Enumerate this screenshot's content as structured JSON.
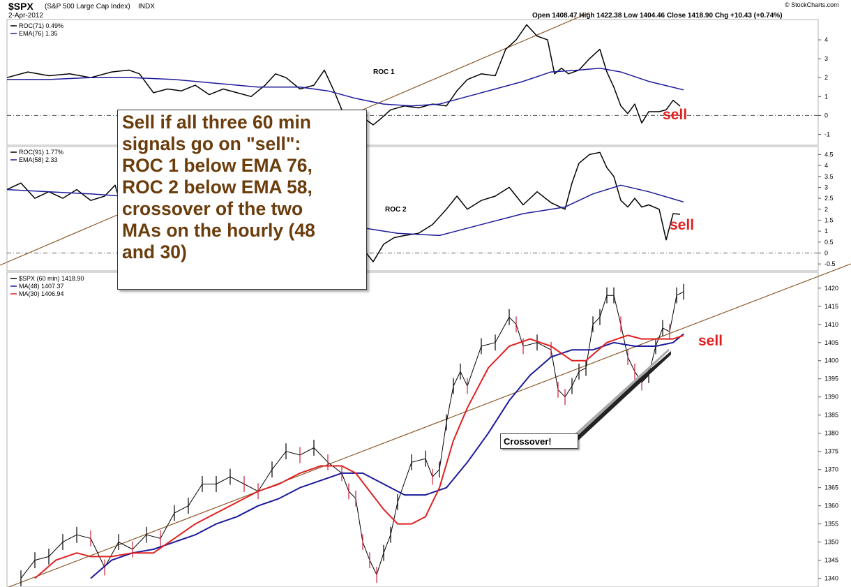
{
  "header": {
    "symbol": "$SPX",
    "name": "(S&P 500 Large Cap Index)",
    "exchange": "INDX",
    "date": "2-Apr-2012",
    "ohlc": "Open 1408.47  High 1422.38  Low 1404.46  Close 1418.90  Chg +10.43 (+0.74%)",
    "brand": "© StockCharts.com"
  },
  "annotation": {
    "text": "Sell if all three 60 min\nsignals go on \"sell\":\nROC 1 below EMA 76,\nROC 2 below EMA 58,\ncrossover of the two\nMAs on the hourly (48\nand 30)",
    "sell": "sell",
    "crossover": "Crossover!"
  },
  "colors": {
    "black": "#000000",
    "blue": "#1a1a9a",
    "red": "#e02020",
    "brown": "#8b5a2b",
    "annot": "#6b3d0c"
  },
  "chart_data": [
    {
      "type": "line",
      "panel": "ROC 1",
      "label": "ROC 1",
      "legend": [
        "ROC(71) 0.49%",
        "EMA(76) 1.35"
      ],
      "ylim": [
        -1.5,
        5
      ],
      "yticks": [
        4,
        3,
        2,
        1,
        0,
        -1
      ],
      "series": [
        {
          "name": "ROC(71)",
          "color": "#000000",
          "x": [
            0,
            30,
            60,
            90,
            120,
            150,
            175,
            190,
            210,
            230,
            250,
            270,
            290,
            310,
            330,
            350,
            370,
            385,
            400,
            420,
            440,
            455,
            470,
            480,
            490,
            500,
            510,
            525,
            535,
            550,
            570,
            590,
            610,
            630,
            645,
            660,
            680,
            700,
            715,
            730,
            745,
            760,
            775,
            785,
            795,
            805,
            820,
            835,
            850,
            860,
            870,
            880,
            890,
            900,
            910,
            920,
            935,
            945,
            955,
            965
          ],
          "values": [
            2.0,
            2.3,
            2.1,
            2.2,
            2.0,
            2.3,
            2.4,
            2.2,
            1.2,
            1.4,
            1.3,
            1.6,
            1.1,
            1.4,
            1.2,
            1.0,
            1.6,
            2.2,
            2.0,
            1.4,
            1.6,
            2.4,
            1.2,
            0.3,
            0.0,
            0.0,
            -0.1,
            -0.5,
            -0.2,
            0.3,
            0.5,
            0.4,
            0.6,
            0.5,
            1.3,
            1.9,
            2.2,
            2.1,
            3.5,
            4.0,
            4.8,
            4.2,
            4.0,
            2.2,
            2.5,
            2.2,
            2.4,
            3.0,
            3.5,
            2.3,
            1.5,
            0.5,
            0.1,
            0.6,
            -0.4,
            0.2,
            0.2,
            0.3,
            0.8,
            0.49
          ]
        },
        {
          "name": "EMA(76)",
          "color": "#1a1a9a",
          "x": [
            0,
            60,
            120,
            180,
            240,
            300,
            360,
            420,
            460,
            500,
            540,
            580,
            620,
            660,
            700,
            740,
            780,
            820,
            850,
            880,
            920,
            970
          ],
          "values": [
            1.9,
            1.9,
            2.0,
            2.0,
            1.9,
            1.7,
            1.5,
            1.5,
            1.3,
            0.9,
            0.6,
            0.5,
            0.6,
            1.0,
            1.4,
            1.8,
            2.3,
            2.4,
            2.5,
            2.3,
            1.8,
            1.35
          ]
        }
      ]
    },
    {
      "type": "line",
      "panel": "ROC 2",
      "label": "ROC 2",
      "legend": [
        "ROC(91) 1.77%",
        "EMA(58) 2.33"
      ],
      "ylim": [
        -0.75,
        4.8
      ],
      "yticks": [
        4.5,
        4.0,
        3.5,
        3.0,
        2.5,
        2.0,
        1.5,
        1.0,
        0.5,
        0.0,
        -0.5
      ],
      "series": [
        {
          "name": "ROC(91)",
          "color": "#000000",
          "x": [
            0,
            20,
            40,
            60,
            80,
            100,
            120,
            140,
            155,
            165,
            500,
            515,
            525,
            540,
            555,
            570,
            590,
            610,
            630,
            645,
            660,
            680,
            700,
            720,
            740,
            760,
            780,
            800,
            810,
            820,
            835,
            850,
            860,
            870,
            880,
            890,
            900,
            910,
            920,
            935,
            945,
            955,
            965
          ],
          "values": [
            2.9,
            3.2,
            2.5,
            2.8,
            2.5,
            2.9,
            2.4,
            2.6,
            3.1,
            2.0,
            0.6,
            0.0,
            -0.4,
            0.4,
            0.7,
            0.8,
            0.9,
            1.3,
            2.0,
            2.6,
            2.0,
            2.4,
            2.6,
            3.0,
            2.2,
            2.8,
            2.3,
            2.0,
            3.2,
            4.1,
            4.5,
            4.6,
            3.9,
            3.5,
            2.4,
            2.1,
            2.5,
            2.1,
            2.2,
            2.0,
            0.6,
            1.8,
            1.77
          ]
        },
        {
          "name": "EMA(58)",
          "color": "#1a1a9a",
          "x": [
            0,
            60,
            120,
            165,
            500,
            560,
            620,
            680,
            740,
            800,
            840,
            880,
            920,
            970
          ],
          "values": [
            2.9,
            2.8,
            2.7,
            2.6,
            1.2,
            0.9,
            0.8,
            1.3,
            1.8,
            2.1,
            2.7,
            3.1,
            2.8,
            2.33
          ]
        }
      ]
    },
    {
      "type": "line",
      "panel": "$SPX (60 min)",
      "legend": [
        "$SPX (60 min) 1418.90",
        "MA(48) 1407.37",
        "MA(30) 1406.94"
      ],
      "ylim": [
        1338,
        1424
      ],
      "yticks": [
        1420,
        1415,
        1410,
        1405,
        1400,
        1395,
        1390,
        1385,
        1380,
        1375,
        1370,
        1365,
        1360,
        1355,
        1350,
        1345,
        1340
      ],
      "series": [
        {
          "name": "$SPX (60 min)",
          "color": "#000000",
          "x": [
            20,
            40,
            60,
            80,
            100,
            120,
            140,
            160,
            180,
            200,
            220,
            240,
            260,
            280,
            300,
            320,
            340,
            360,
            380,
            400,
            420,
            440,
            460,
            480,
            490,
            500,
            510,
            520,
            530,
            540,
            550,
            560,
            580,
            600,
            610,
            620,
            630,
            640,
            650,
            660,
            680,
            700,
            720,
            730,
            740,
            760,
            780,
            790,
            800,
            810,
            820,
            830,
            840,
            850,
            860,
            870,
            880,
            890,
            900,
            910,
            920,
            930,
            940,
            950,
            960,
            970
          ],
          "values": [
            1340,
            1345,
            1346,
            1350,
            1352,
            1351,
            1343,
            1350,
            1348,
            1352,
            1351,
            1358,
            1360,
            1366,
            1366,
            1368,
            1366,
            1364,
            1370,
            1375,
            1374,
            1376,
            1372,
            1369,
            1364,
            1362,
            1350,
            1345,
            1341,
            1347,
            1352,
            1361,
            1372,
            1373,
            1368,
            1370,
            1383,
            1393,
            1397,
            1393,
            1404,
            1405,
            1412,
            1410,
            1404,
            1405,
            1403,
            1392,
            1390,
            1393,
            1397,
            1398,
            1410,
            1412,
            1418,
            1418,
            1410,
            1401,
            1397,
            1394,
            1396,
            1404,
            1409,
            1408,
            1418,
            1419
          ]
        },
        {
          "name": "MA(48)",
          "color": "#1a1a9a",
          "x": [
            120,
            150,
            180,
            210,
            240,
            270,
            300,
            330,
            360,
            390,
            420,
            450,
            480,
            510,
            540,
            570,
            600,
            630,
            660,
            690,
            720,
            750,
            780,
            810,
            840,
            870,
            900,
            930,
            955,
            970
          ],
          "values": [
            1340,
            1345,
            1347,
            1348,
            1350,
            1352,
            1355,
            1357,
            1360,
            1362,
            1365,
            1367,
            1369,
            1369,
            1366,
            1363,
            1363,
            1365,
            1372,
            1380,
            1389,
            1396,
            1401,
            1403,
            1403,
            1405,
            1404,
            1404,
            1405,
            1407.37
          ]
        },
        {
          "name": "MA(30)",
          "color": "#e02020",
          "x": [
            40,
            70,
            100,
            120,
            150,
            180,
            210,
            240,
            270,
            300,
            330,
            360,
            390,
            420,
            450,
            480,
            500,
            520,
            540,
            560,
            580,
            600,
            620,
            640,
            660,
            690,
            720,
            750,
            780,
            810,
            830,
            860,
            890,
            910,
            940,
            955,
            970
          ],
          "values": [
            1340,
            1345,
            1347,
            1346,
            1346,
            1347,
            1347,
            1351,
            1355,
            1358,
            1361,
            1364,
            1366,
            1369,
            1371,
            1371,
            1369,
            1364,
            1359,
            1355,
            1355,
            1357,
            1365,
            1378,
            1387,
            1398,
            1404,
            1406,
            1404,
            1400,
            1400,
            1405,
            1407,
            1406,
            1406,
            1406,
            1406.94
          ]
        }
      ]
    }
  ]
}
